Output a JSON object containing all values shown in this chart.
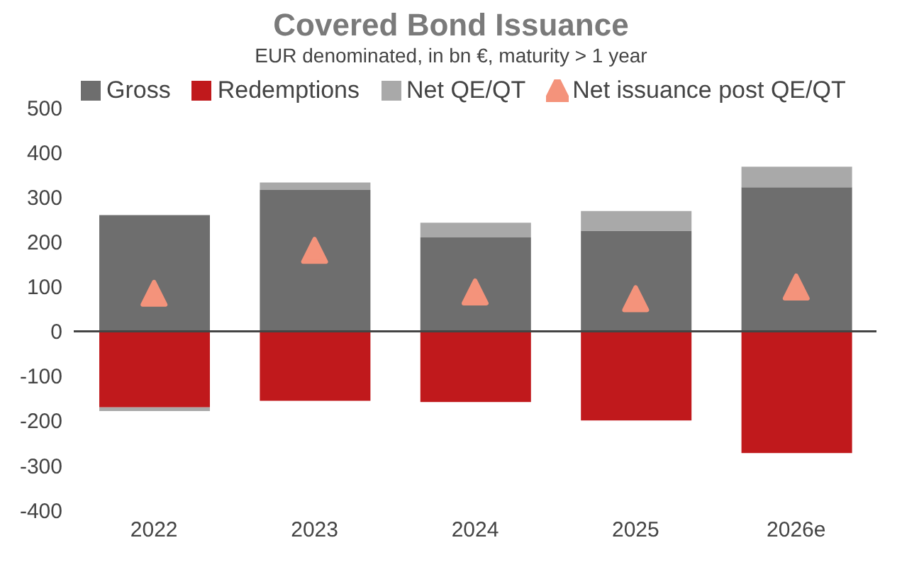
{
  "chart_data": {
    "type": "bar",
    "title": "Covered Bond Issuance",
    "subtitle": "EUR denominated, in bn €, maturity > 1 year",
    "categories": [
      "2022",
      "2023",
      "2024",
      "2025",
      "2026e"
    ],
    "stacked": true,
    "series": [
      {
        "name": "Gross",
        "color": "#6e6e6e",
        "values": [
          260,
          316,
          210,
          225,
          322
        ]
      },
      {
        "name": "Redemptions",
        "color": "#c0191c",
        "values": [
          -170,
          -155,
          -158,
          -199,
          -272
        ]
      },
      {
        "name": "Net QE/QT",
        "color": "#a9a9a9",
        "values": [
          -8,
          17,
          33,
          44,
          46
        ]
      },
      {
        "name": "Net issuance post QE/QT",
        "type": "scatter",
        "marker": "triangle",
        "color": "#f4937b",
        "values": [
          82,
          178,
          85,
          70,
          96
        ]
      }
    ],
    "ylim": [
      -400,
      500
    ],
    "yticks": [
      -400,
      -300,
      -200,
      -100,
      0,
      100,
      200,
      300,
      400,
      500
    ],
    "grid": false,
    "legend": "top",
    "ref_lines": [
      {
        "axis": "y",
        "value": 0,
        "color": "#444444"
      }
    ]
  }
}
